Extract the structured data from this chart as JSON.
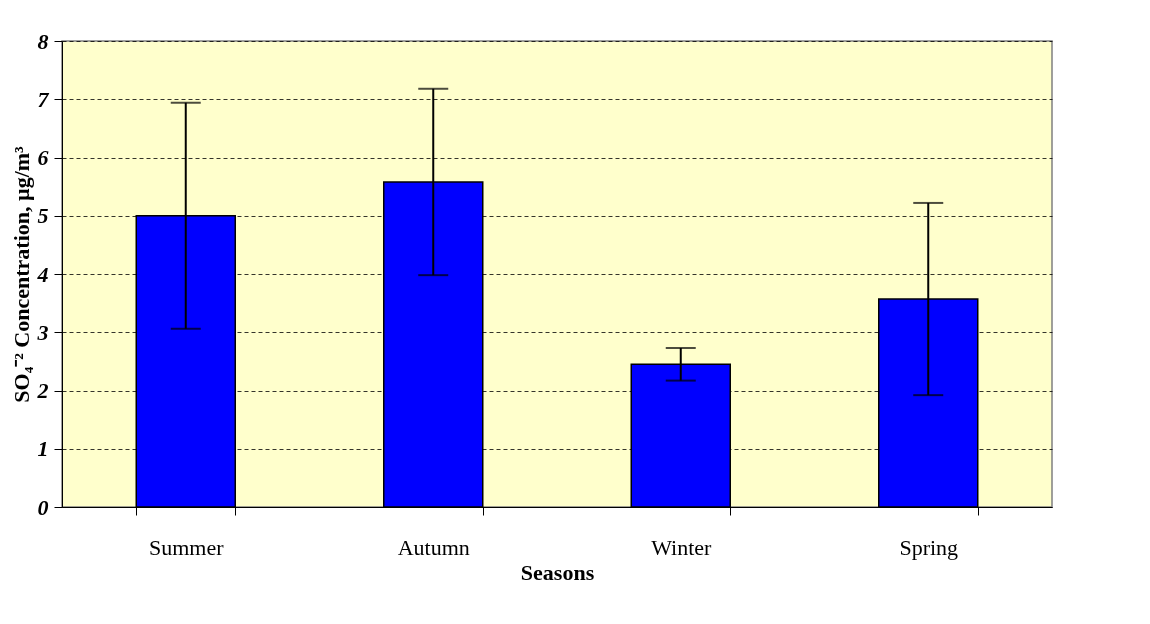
{
  "chart_data": {
    "type": "bar",
    "xlabel": "Seasons",
    "ylabel": "SO₄⁻² Concentration, µg/m³",
    "categories": [
      "Summer",
      "Autumn",
      "Winter",
      "Spring"
    ],
    "values": [
      5.0,
      5.58,
      2.45,
      3.57
    ],
    "errors": [
      1.94,
      1.6,
      0.28,
      1.65
    ],
    "color": "#0000ff",
    "ylim": [
      0,
      8
    ],
    "yticks": [
      0,
      1,
      2,
      3,
      4,
      5,
      6,
      7,
      8
    ],
    "grid": "y"
  }
}
